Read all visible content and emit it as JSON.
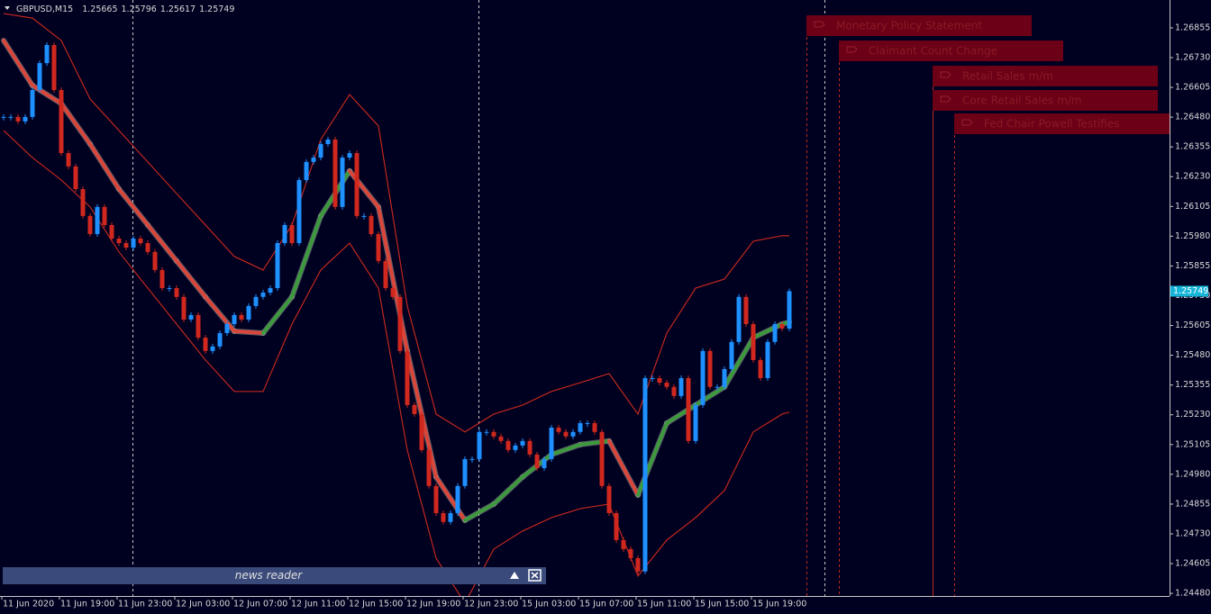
{
  "header": {
    "symbol": "GBPUSD,M15",
    "ohlc": [
      1.25665,
      1.25796,
      1.25617,
      1.25749
    ]
  },
  "chart_data": {
    "type": "candlestick",
    "categories": [
      null,
      null,
      null,
      "11 Jun 2020",
      null,
      null,
      null,
      null,
      null,
      null,
      null,
      "11 Jun 19:00",
      null,
      null,
      null,
      null,
      null,
      null,
      null,
      "11 Jun 23:00",
      null,
      null,
      null,
      null,
      null,
      null,
      null,
      "12 Jun 03:00",
      null,
      null,
      null,
      null,
      null,
      null,
      null,
      "12 Jun 07:00",
      null,
      null,
      null,
      null,
      null,
      null,
      null,
      "12 Jun 11:00",
      null,
      null,
      null,
      null,
      null,
      null,
      null,
      "12 Jun 15:00",
      null,
      null,
      null,
      null,
      null,
      null,
      null,
      "12 Jun 19:00",
      null,
      null,
      null,
      null,
      null,
      null,
      null,
      "12 Jun 23:00",
      null,
      null,
      null,
      null,
      null,
      null,
      null,
      "15 Jun 03:00",
      null,
      null,
      null,
      null,
      null,
      null,
      null,
      "15 Jun 07:00",
      null,
      null,
      null,
      null,
      null,
      null,
      null,
      "15 Jun 11:00",
      null,
      null,
      null,
      null,
      null,
      null,
      null,
      "15 Jun 15:00",
      null,
      null,
      null,
      null,
      null,
      null,
      null,
      "15 Jun 19:00",
      null,
      null
    ],
    "series": [
      {
        "up_color": "#1e90ff",
        "down_color": "#d0281e",
        "values": [
          1.26481,
          1.26481,
          1.26462,
          1.26481,
          1.26594,
          1.26707,
          1.26783,
          1.26594,
          1.26329,
          1.26273,
          1.26178,
          1.26065,
          1.25989,
          1.26103,
          1.26027,
          1.2597,
          1.25951,
          1.25932,
          1.2597,
          1.25951,
          1.25914,
          1.25838,
          1.25762,
          1.25762,
          1.25725,
          1.2563,
          1.25649,
          1.25554,
          1.25498,
          1.25517,
          1.25573,
          1.25611,
          1.25649,
          1.2563,
          1.25687,
          1.25725,
          1.25743,
          1.25762,
          1.25951,
          1.26027,
          1.25951,
          1.26216,
          1.26292,
          1.2631,
          1.26367,
          1.26386,
          1.26103,
          1.2631,
          1.26329,
          1.26065,
          1.26065,
          1.25989,
          1.25876,
          1.25762,
          1.25725,
          1.25498,
          1.25271,
          1.25233,
          1.25082,
          1.24931,
          1.24817,
          1.2478,
          1.24817,
          1.24931,
          1.25044,
          1.25044,
          1.25158,
          1.25158,
          1.25139,
          1.2512,
          1.25082,
          1.25101,
          1.2512,
          1.25063,
          1.25006,
          1.25044,
          1.25176,
          1.25158,
          1.25139,
          1.25158,
          1.25195,
          1.25195,
          1.25158,
          1.24931,
          1.24817,
          1.24704,
          1.24666,
          1.24628,
          1.24572,
          1.25384,
          1.25384,
          1.25365,
          1.25347,
          1.25309,
          1.25384,
          1.2512,
          1.25271,
          1.25498,
          1.25347,
          1.25347,
          1.25422,
          1.25536,
          1.25725,
          1.25611,
          1.2546,
          1.25384,
          1.25536,
          1.25611,
          1.25592,
          1.25749
        ]
      }
    ],
    "overlays": [
      {
        "type": "line",
        "color": "#d9463a",
        "rising_color": "#3c9a3c",
        "thick": true,
        "x": [
          0,
          4,
          8,
          12,
          16,
          20,
          24,
          28,
          32,
          36,
          40,
          44,
          48,
          52,
          56,
          60,
          64,
          68,
          72,
          76,
          80,
          84,
          88,
          92,
          96,
          100,
          104,
          108,
          109
        ],
        "values": [
          1.26802,
          1.26613,
          1.26537,
          1.26367,
          1.26178,
          1.26027,
          1.25876,
          1.25725,
          1.25581,
          1.25573,
          1.25725,
          1.26065,
          1.26254,
          1.26103,
          1.25498,
          1.24969,
          1.24787,
          1.24855,
          1.24969,
          1.25063,
          1.25105,
          1.2512,
          1.24893,
          1.25195,
          1.25271,
          1.25347,
          1.25554,
          1.25611,
          1.25619
        ]
      },
      {
        "type": "line",
        "color": "#c0281e",
        "x": [
          0,
          4,
          8,
          12,
          16,
          20,
          24,
          28,
          32,
          36,
          40,
          44,
          48,
          52,
          56,
          60,
          64,
          68,
          72,
          76,
          80,
          84,
          88,
          92,
          96,
          100,
          104,
          108,
          109
        ],
        "values": [
          1.26915,
          1.26896,
          1.26802,
          1.26556,
          1.26424,
          1.26292,
          1.26159,
          1.26027,
          1.25895,
          1.25838,
          1.26027,
          1.26386,
          1.26575,
          1.26443,
          1.25687,
          1.25233,
          1.25158,
          1.25233,
          1.25271,
          1.25328,
          1.25365,
          1.25403,
          1.25233,
          1.25573,
          1.25762,
          1.258,
          1.25959,
          1.25982,
          1.25982
        ]
      },
      {
        "type": "line",
        "color": "#c0281e",
        "x": [
          0,
          4,
          8,
          12,
          16,
          20,
          24,
          28,
          32,
          36,
          40,
          44,
          48,
          52,
          56,
          60,
          64,
          68,
          72,
          76,
          80,
          84,
          88,
          92,
          96,
          100,
          104,
          108,
          109
        ],
        "values": [
          1.26424,
          1.2631,
          1.26216,
          1.26103,
          1.25914,
          1.25762,
          1.25611,
          1.2546,
          1.25328,
          1.25328,
          1.25611,
          1.25838,
          1.25951,
          1.25762,
          1.25082,
          1.24628,
          1.24439,
          1.24666,
          1.24742,
          1.24798,
          1.24836,
          1.24855,
          1.24553,
          1.24704,
          1.24798,
          1.24912,
          1.25158,
          1.25233,
          1.25241
        ]
      }
    ],
    "ylim": [
      1.24469,
      1.26972
    ],
    "yticks": [
      1.26855,
      {
        "value": 1.2673,
        "label": "1.26730"
      },
      1.26605,
      {
        "value": 1.2648,
        "label": "1.26480"
      },
      1.26355,
      {
        "value": 1.2623,
        "label": "1.26230"
      },
      1.26105,
      {
        "value": 1.2598,
        "label": "1.25980"
      },
      1.25855,
      {
        "value": 1.2573,
        "label": "1.25730"
      },
      1.25605,
      {
        "value": 1.2548,
        "label": "1.25480"
      },
      1.25355,
      {
        "value": 1.2523,
        "label": "1.25230"
      },
      1.25105,
      {
        "value": 1.2498,
        "label": "1.24980"
      },
      1.24855,
      {
        "value": 1.2473,
        "label": "1.24730"
      },
      1.24605,
      {
        "value": 1.2448,
        "label": "1.24480"
      }
    ]
  },
  "events": [
    {
      "label": "Monetary Policy Statement"
    },
    {
      "label": "Claimant Count Change"
    },
    {
      "label": "Retail Sales m/m"
    },
    {
      "label": "Core Retail Sales m/m"
    },
    {
      "label": "Fed Chair Powell Testifies"
    }
  ],
  "panel": {
    "title": "news reader"
  }
}
